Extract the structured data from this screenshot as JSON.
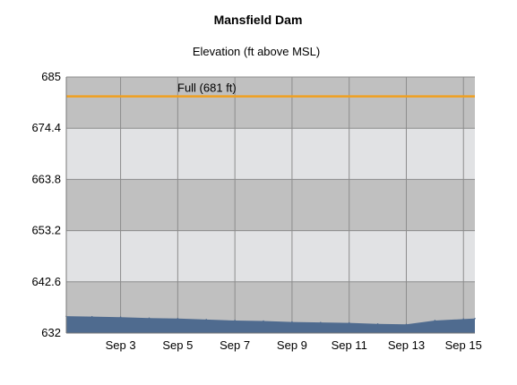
{
  "chart_data": {
    "type": "area",
    "title": "Mansfield Dam",
    "subtitle": "Elevation (ft above MSL)",
    "xlabel": "",
    "ylabel": "",
    "ylim": [
      632,
      685
    ],
    "y_ticks": [
      632,
      642.6,
      653.2,
      663.8,
      674.4,
      685
    ],
    "y_tick_labels": [
      "632",
      "642.6",
      "653.2",
      "663.8",
      "674.4",
      "685"
    ],
    "x_ticks": [
      3,
      5,
      7,
      9,
      11,
      13,
      15
    ],
    "x_tick_labels": [
      "Sep 3",
      "Sep 5",
      "Sep 7",
      "Sep 9",
      "Sep 11",
      "Sep 13",
      "Sep 15"
    ],
    "xlim": [
      1.1,
      15.4
    ],
    "grid": true,
    "band_colors": [
      "#e1e2e4",
      "#c0c0c0"
    ],
    "series": [
      {
        "color": "#4f6b8f",
        "x": [
          1.1,
          2,
          3,
          4,
          5,
          6,
          7,
          8,
          9,
          10,
          11,
          12,
          13,
          14,
          15,
          15.4
        ],
        "y": [
          635.5,
          635.4,
          635.3,
          635.1,
          635.0,
          634.8,
          634.6,
          634.5,
          634.3,
          634.2,
          634.1,
          633.9,
          633.8,
          634.6,
          634.9,
          635.0
        ]
      }
    ],
    "reference_line": {
      "value": 681,
      "label": "Full (681 ft)",
      "color": "#f0a020"
    }
  }
}
